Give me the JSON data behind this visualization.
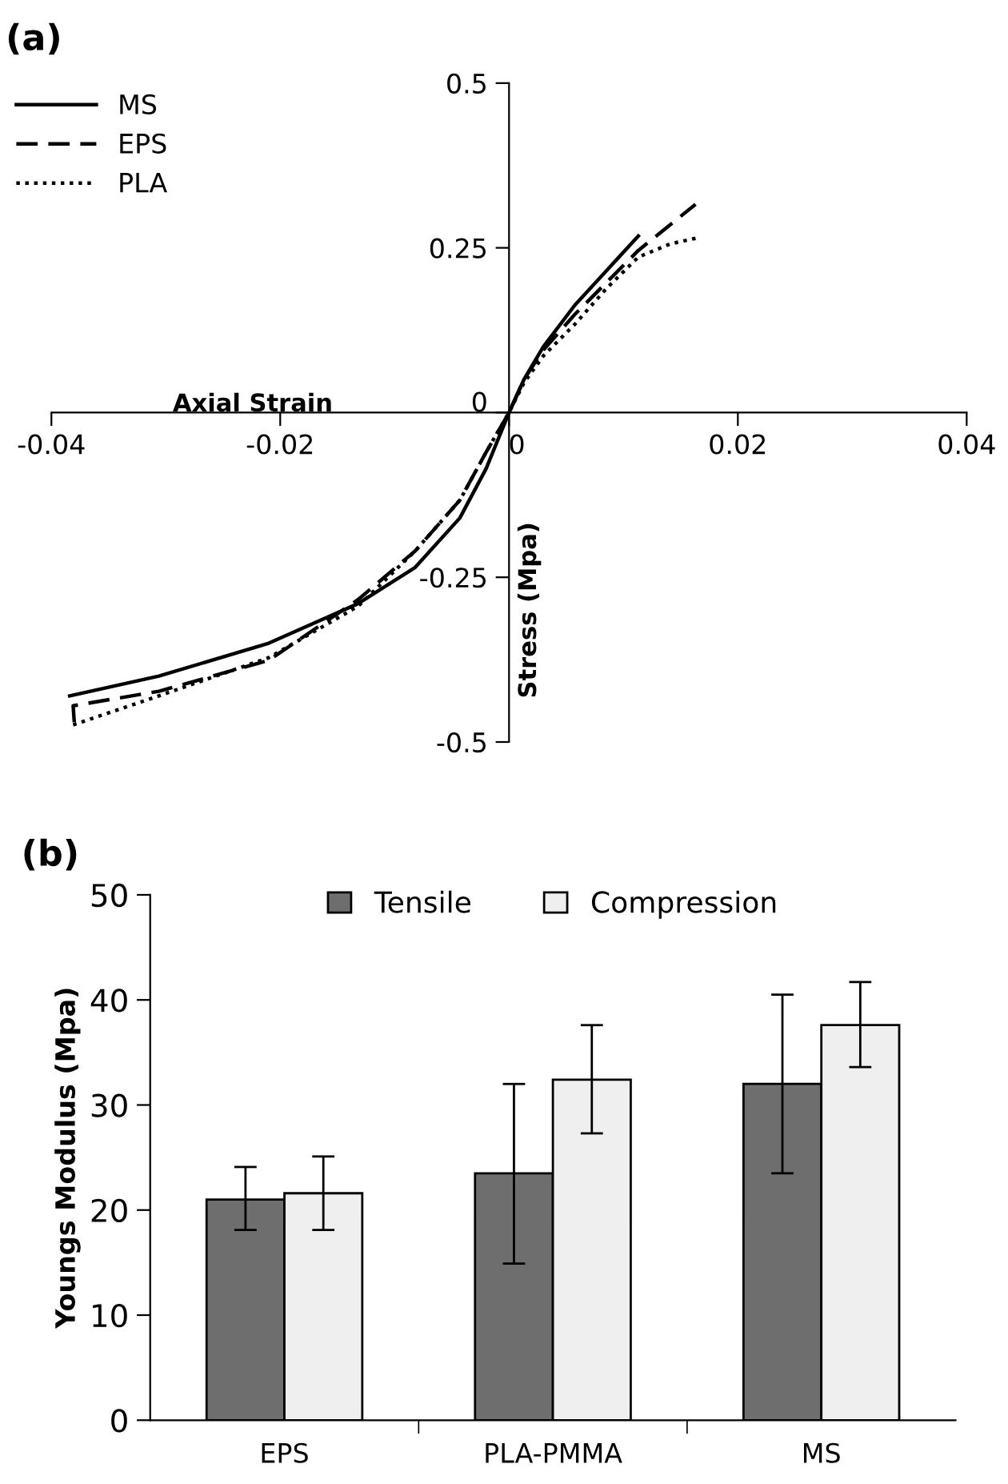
{
  "chart_data": [
    {
      "type": "line",
      "title": "(a)",
      "xlabel": "Axial Strain",
      "ylabel": "Stress (Mpa)",
      "xlim": [
        -0.04,
        0.04
      ],
      "ylim": [
        -0.5,
        0.5
      ],
      "xticks": [
        -0.04,
        -0.02,
        0,
        0.02,
        0.04
      ],
      "yticks": [
        {
          "value": -0.5,
          "label": "-0.5"
        },
        {
          "value": -0.25,
          "label": "-0.25"
        },
        0,
        0.25,
        0.5
      ],
      "legend": "top left",
      "grid": false,
      "marker": "none",
      "series": [
        {
          "name": "MS",
          "color": "#000000",
          "line_style": "solid",
          "x": [
            -0.0384,
            -0.0306,
            -0.021,
            -0.0132,
            -0.0082,
            -0.0043,
            -0.002,
            0,
            0.0013,
            0.003,
            0.00575,
            0.0113
          ],
          "values": [
            -0.43,
            -0.4,
            -0.35,
            -0.29,
            -0.235,
            -0.16,
            -0.085,
            0,
            0.05,
            0.1,
            0.163,
            0.268
          ]
        },
        {
          "name": "EPS",
          "color": "#000000",
          "line_style": "dashed",
          "x": [
            -0.038,
            -0.0381,
            -0.0306,
            -0.021,
            -0.0132,
            -0.0082,
            -0.0043,
            -0.002,
            0,
            0.0013,
            0.003,
            0.00575,
            0.0113,
            0.0163
          ],
          "values": [
            -0.47,
            -0.445,
            -0.423,
            -0.376,
            -0.284,
            -0.21,
            -0.133,
            -0.06,
            0,
            0.05,
            0.095,
            0.149,
            0.246,
            0.316
          ]
        },
        {
          "name": "PLA",
          "color": "#000000",
          "line_style": "dotted",
          "x": [
            -0.0381,
            -0.0306,
            -0.021,
            -0.0132,
            -0.0082,
            -0.0043,
            -0.002,
            0,
            0.0013,
            0.003,
            0.00575,
            0.0085,
            0.0113,
            0.0141,
            0.0167
          ],
          "values": [
            -0.474,
            -0.43,
            -0.372,
            -0.294,
            -0.21,
            -0.133,
            -0.06,
            0,
            0.045,
            0.086,
            0.134,
            0.188,
            0.236,
            0.256,
            0.266
          ]
        }
      ]
    },
    {
      "type": "bar",
      "title": "(b)",
      "ylabel": "Youngs Modulus (Mpa)",
      "categories": [
        "EPS",
        "PLA-PMMA",
        "MS"
      ],
      "ylim": [
        0,
        50
      ],
      "yticks": [
        0,
        10,
        20,
        30,
        40,
        50
      ],
      "legend": "top",
      "grid": false,
      "series": [
        {
          "name": "Tensile",
          "color": "#6e6e6e",
          "values": [
            21,
            23.5,
            32
          ],
          "errors": [
            [
              18.1,
              24.1
            ],
            [
              14.9,
              32
            ],
            [
              23.5,
              40.5
            ]
          ]
        },
        {
          "name": "Compression",
          "color": "#efefef",
          "values": [
            21.6,
            32.4,
            37.6
          ],
          "errors": [
            [
              18.1,
              25.1
            ],
            [
              27.3,
              37.6
            ],
            [
              33.6,
              41.7
            ]
          ]
        }
      ]
    }
  ]
}
